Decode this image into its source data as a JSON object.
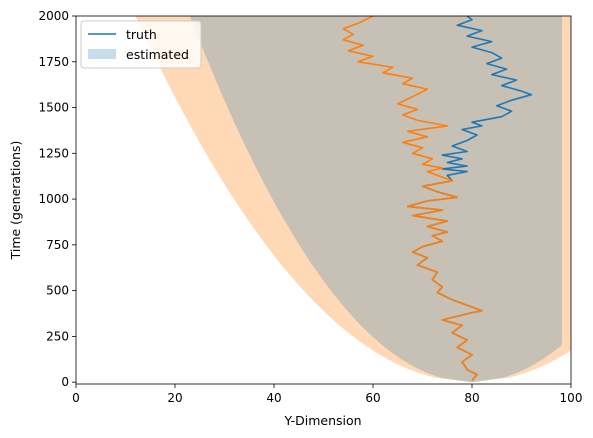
{
  "chart_data": {
    "type": "line",
    "xlabel": "Y-Dimension",
    "ylabel": "Time (generations)",
    "xlim": [
      0,
      100
    ],
    "ylim": [
      -10,
      2000
    ],
    "x_ticks": [
      0,
      20,
      40,
      60,
      80,
      100
    ],
    "y_ticks": [
      0,
      250,
      500,
      750,
      1000,
      1250,
      1500,
      1750,
      2000
    ],
    "grid": false,
    "legend": {
      "placement": "top-left",
      "entries": [
        {
          "label": "truth",
          "kind": "line",
          "color": "#1f77b4"
        },
        {
          "label": "estimated",
          "kind": "patch",
          "color": "#1f77b4"
        }
      ]
    },
    "series": [
      {
        "name": "truth",
        "kind": "line",
        "color": "#1f77b4",
        "points": [
          [
            80,
            10
          ],
          [
            81,
            40
          ],
          [
            79,
            70
          ],
          [
            78,
            110
          ],
          [
            80,
            150
          ],
          [
            77,
            190
          ],
          [
            79,
            230
          ],
          [
            76,
            270
          ],
          [
            78,
            310
          ],
          [
            74,
            340
          ],
          [
            80,
            380
          ],
          [
            82,
            390
          ],
          [
            79,
            420
          ],
          [
            76,
            450
          ],
          [
            73,
            490
          ],
          [
            74,
            520
          ],
          [
            72,
            560
          ],
          [
            73,
            600
          ],
          [
            69,
            640
          ],
          [
            71,
            680
          ],
          [
            68,
            710
          ],
          [
            70,
            740
          ],
          [
            74,
            770
          ],
          [
            72,
            800
          ],
          [
            75,
            820
          ],
          [
            71,
            850
          ],
          [
            75,
            880
          ],
          [
            68,
            910
          ],
          [
            74,
            940
          ],
          [
            67,
            960
          ],
          [
            71,
            990
          ],
          [
            77,
            1010
          ],
          [
            73,
            1040
          ],
          [
            70,
            1070
          ],
          [
            76,
            1100
          ],
          [
            75,
            1130
          ],
          [
            79,
            1150
          ],
          [
            74,
            1165
          ],
          [
            79,
            1180
          ],
          [
            75,
            1200
          ],
          [
            78,
            1220
          ],
          [
            74,
            1240
          ],
          [
            79,
            1260
          ],
          [
            76,
            1290
          ],
          [
            79,
            1320
          ],
          [
            81,
            1350
          ],
          [
            78,
            1380
          ],
          [
            82,
            1400
          ],
          [
            80,
            1420
          ],
          [
            86,
            1450
          ],
          [
            88,
            1480
          ],
          [
            85,
            1510
          ],
          [
            88,
            1540
          ],
          [
            92,
            1570
          ],
          [
            90,
            1590
          ],
          [
            86,
            1620
          ],
          [
            89,
            1650
          ],
          [
            84,
            1680
          ],
          [
            87,
            1710
          ],
          [
            83,
            1740
          ],
          [
            86,
            1770
          ],
          [
            84,
            1800
          ],
          [
            80,
            1830
          ],
          [
            84,
            1860
          ],
          [
            79,
            1890
          ],
          [
            82,
            1920
          ],
          [
            77,
            1950
          ],
          [
            80,
            1980
          ],
          [
            79,
            2000
          ]
        ]
      },
      {
        "name": "",
        "kind": "line",
        "color": "#ff7f0e",
        "points": [
          [
            80,
            10
          ],
          [
            81,
            40
          ],
          [
            79,
            70
          ],
          [
            78,
            110
          ],
          [
            80,
            150
          ],
          [
            77,
            190
          ],
          [
            79,
            230
          ],
          [
            76,
            270
          ],
          [
            78,
            310
          ],
          [
            74,
            340
          ],
          [
            80,
            380
          ],
          [
            82,
            390
          ],
          [
            79,
            420
          ],
          [
            76,
            450
          ],
          [
            73,
            490
          ],
          [
            74,
            520
          ],
          [
            72,
            560
          ],
          [
            73,
            600
          ],
          [
            69,
            640
          ],
          [
            71,
            680
          ],
          [
            68,
            710
          ],
          [
            70,
            740
          ],
          [
            74,
            770
          ],
          [
            72,
            800
          ],
          [
            75,
            820
          ],
          [
            71,
            850
          ],
          [
            75,
            880
          ],
          [
            68,
            910
          ],
          [
            74,
            940
          ],
          [
            67,
            960
          ],
          [
            71,
            990
          ],
          [
            77,
            1010
          ],
          [
            73,
            1040
          ],
          [
            70,
            1070
          ],
          [
            76,
            1100
          ],
          [
            73,
            1130
          ],
          [
            71,
            1150
          ],
          [
            74,
            1170
          ],
          [
            70,
            1190
          ],
          [
            72,
            1220
          ],
          [
            68,
            1250
          ],
          [
            70,
            1280
          ],
          [
            66,
            1310
          ],
          [
            71,
            1340
          ],
          [
            67,
            1370
          ],
          [
            75,
            1400
          ],
          [
            69,
            1430
          ],
          [
            66,
            1460
          ],
          [
            69,
            1490
          ],
          [
            65,
            1520
          ],
          [
            68,
            1560
          ],
          [
            71,
            1600
          ],
          [
            66,
            1630
          ],
          [
            68,
            1660
          ],
          [
            62,
            1690
          ],
          [
            64,
            1720
          ],
          [
            57,
            1750
          ],
          [
            60,
            1780
          ],
          [
            55,
            1810
          ],
          [
            58,
            1840
          ],
          [
            54,
            1870
          ],
          [
            56,
            1900
          ],
          [
            54,
            1930
          ],
          [
            57,
            1960
          ],
          [
            60,
            2000
          ]
        ]
      },
      {
        "name": "estimated",
        "kind": "band",
        "color": "#1f77b4",
        "opacity": 0.25,
        "center": [
          80,
          0
        ],
        "halfwidth_at_top": 57,
        "right_limit": 98.2
      },
      {
        "name": "",
        "kind": "band",
        "color": "#ff7f0e",
        "opacity": 0.3,
        "center": [
          80,
          0
        ],
        "halfwidth_at_top": 68
      }
    ]
  }
}
